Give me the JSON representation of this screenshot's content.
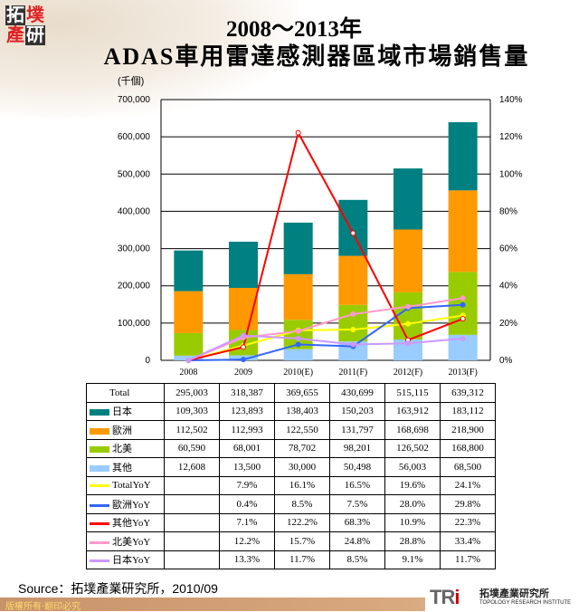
{
  "header": {
    "logo_text": "拓墣產研",
    "title_line1": "2008～2013年",
    "title_line2": "ADAS車用雷達感測器區域市場銷售量"
  },
  "chart_data": {
    "type": "bar",
    "subtype": "stacked bar with line overlay (secondary axis)",
    "title": "2008～2013年 ADAS車用雷達感測器區域市場銷售量",
    "ylabel": "(千個)",
    "ylim": [
      0,
      700000
    ],
    "y_ticks": [
      "0",
      "100,000",
      "200,000",
      "300,000",
      "400,000",
      "500,000",
      "600,000",
      "700,000"
    ],
    "y2lim": [
      0,
      140
    ],
    "y2_ticks": [
      "0%",
      "20%",
      "40%",
      "60%",
      "80%",
      "100%",
      "120%",
      "140%"
    ],
    "categories": [
      "2008",
      "2009",
      "2010(E)",
      "2011(F)",
      "2012(F)",
      "2013(F)"
    ],
    "total": {
      "name": "Total",
      "values": [
        "295,003",
        "318,387",
        "369,655",
        "430,699",
        "515,115",
        "639,312"
      ]
    },
    "series": [
      {
        "name": "日本",
        "color": "#008080",
        "values": [
          109303,
          123893,
          138403,
          150203,
          163912,
          183112
        ]
      },
      {
        "name": "歐洲",
        "color": "#ff9900",
        "values": [
          112502,
          112993,
          122550,
          131797,
          168698,
          218900
        ]
      },
      {
        "name": "北美",
        "color": "#99cc00",
        "values": [
          60590,
          68001,
          78702,
          98201,
          126502,
          168800
        ]
      },
      {
        "name": "其他",
        "color": "#99ccff",
        "values": [
          12608,
          13500,
          30000,
          50498,
          56003,
          68500
        ]
      }
    ],
    "line_series": [
      {
        "name": "TotalYoY",
        "color": "#ffff00",
        "values": [
          null,
          7.9,
          16.1,
          16.5,
          19.6,
          24.1
        ]
      },
      {
        "name": "歐洲YoY",
        "color": "#3366ff",
        "values": [
          null,
          0.4,
          8.5,
          7.5,
          28.0,
          29.8
        ]
      },
      {
        "name": "其他YoY",
        "color": "#ff0000",
        "values": [
          null,
          7.1,
          122.2,
          68.3,
          10.9,
          22.3
        ]
      },
      {
        "name": "北美YoY",
        "color": "#ff99cc",
        "values": [
          null,
          12.2,
          15.7,
          24.8,
          28.8,
          33.4
        ]
      },
      {
        "name": "日本YoY",
        "color": "#cc99ff",
        "values": [
          null,
          13.3,
          11.7,
          8.5,
          9.1,
          11.7
        ]
      }
    ],
    "legend": "table"
  },
  "footer": {
    "source": "Source：拓墣產業研究所，2010/09",
    "copyright": "版權所有‧翻印必究",
    "tri_mark": "TRi",
    "tri_name_cn": "拓墣產業研究所",
    "tri_name_en": "TOPOLOGY RESEARCH INSTITUTE"
  }
}
